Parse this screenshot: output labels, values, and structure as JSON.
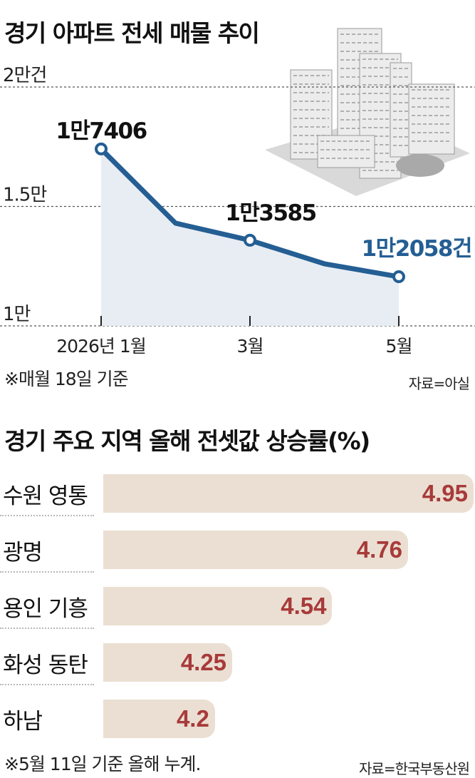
{
  "colors": {
    "line": "#245e93",
    "area": "#e8edf3",
    "bar": "#eadfd2",
    "bar_value": "#a83a3a",
    "highlight_label": "#245e93"
  },
  "line_chart": {
    "title": "경기 아파트 전세 매물 추이",
    "note": "※매월 18일 기준",
    "source": "자료=아실",
    "illustration": "apartment-buildings",
    "y_ticks": [
      {
        "value": 20000,
        "label": "2만건"
      },
      {
        "value": 15000,
        "label": "1.5만"
      },
      {
        "value": 10000,
        "label": "1만"
      }
    ],
    "x_ticks": [
      {
        "index": 0,
        "label": "2026년 1월"
      },
      {
        "index": 2,
        "label": "3월"
      },
      {
        "index": 4,
        "label": "5월"
      }
    ],
    "point_labels": [
      {
        "index": 0,
        "label": "1만7406"
      },
      {
        "index": 2,
        "label": "1만3585"
      },
      {
        "index": 4,
        "label": "1만2058건"
      }
    ]
  },
  "bar_chart": {
    "title": "경기 주요 지역 올해 전셋값 상승률(%)",
    "note": "※5월 11일 기준 올해 누계.",
    "source": "자료=한국부동산원"
  },
  "chart_data": [
    {
      "type": "area",
      "title": "경기 아파트 전세 매물 추이",
      "categories": [
        "2026-01",
        "2026-02",
        "2026-03",
        "2026-04",
        "2026-05"
      ],
      "values": [
        17406,
        14300,
        13585,
        12600,
        12058
      ],
      "ylim": [
        10000,
        20000
      ],
      "yticks": [
        "2만건",
        "1.5만",
        "1만"
      ],
      "grid": true,
      "legend": "none"
    },
    {
      "type": "bar",
      "title": "경기 주요 지역 올해 전셋값 상승률(%)",
      "categories": [
        "수원 영통",
        "광명",
        "용인 기흥",
        "화성 동탄",
        "하남"
      ],
      "values": [
        4.95,
        4.76,
        4.54,
        4.25,
        4.2
      ],
      "value_labels": [
        "4.95",
        "4.76",
        "4.54",
        "4.25",
        "4.2"
      ],
      "orientation": "horizontal",
      "xlim": [
        0,
        4.95
      ],
      "legend": "none"
    }
  ]
}
